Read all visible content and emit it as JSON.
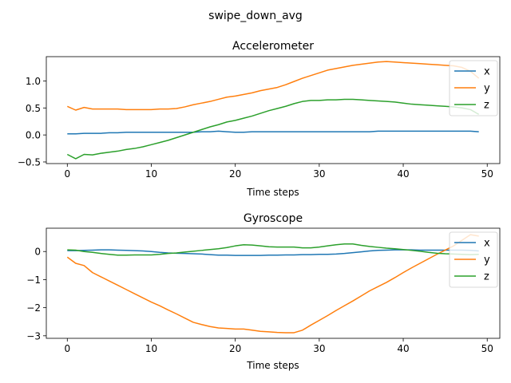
{
  "figure": {
    "suptitle": "swipe_down_avg",
    "series_colors": {
      "x": "#1f77b4",
      "y": "#ff7f0e",
      "z": "#2ca02c"
    }
  },
  "chart_data": [
    {
      "type": "line",
      "title": "Accelerometer",
      "xlabel": "Time steps",
      "ylabel": "",
      "xlim": [
        -2.5,
        51.5
      ],
      "ylim": [
        -0.53,
        1.45
      ],
      "xticks": [
        0,
        10,
        20,
        30,
        40,
        50
      ],
      "yticks": [
        -0.5,
        0.0,
        0.5,
        1.0
      ],
      "ytick_labels": [
        "−0.5",
        "0.0",
        "0.5",
        "1.0"
      ],
      "legend": "top-right",
      "x": [
        0,
        1,
        2,
        3,
        4,
        5,
        6,
        7,
        8,
        9,
        10,
        11,
        12,
        13,
        14,
        15,
        16,
        17,
        18,
        19,
        20,
        21,
        22,
        23,
        24,
        25,
        26,
        27,
        28,
        29,
        30,
        31,
        32,
        33,
        34,
        35,
        36,
        37,
        38,
        39,
        40,
        41,
        42,
        43,
        44,
        45,
        46,
        47,
        48,
        49
      ],
      "series": [
        {
          "name": "x",
          "values": [
            0.02,
            0.02,
            0.03,
            0.03,
            0.03,
            0.04,
            0.04,
            0.05,
            0.05,
            0.05,
            0.05,
            0.05,
            0.05,
            0.05,
            0.05,
            0.05,
            0.06,
            0.06,
            0.07,
            0.06,
            0.05,
            0.05,
            0.06,
            0.06,
            0.06,
            0.06,
            0.06,
            0.06,
            0.06,
            0.06,
            0.06,
            0.06,
            0.06,
            0.06,
            0.06,
            0.06,
            0.06,
            0.07,
            0.07,
            0.07,
            0.07,
            0.07,
            0.07,
            0.07,
            0.07,
            0.07,
            0.07,
            0.07,
            0.07,
            0.06
          ]
        },
        {
          "name": "y",
          "values": [
            0.53,
            0.46,
            0.51,
            0.48,
            0.48,
            0.48,
            0.48,
            0.47,
            0.47,
            0.47,
            0.47,
            0.48,
            0.48,
            0.49,
            0.52,
            0.56,
            0.59,
            0.62,
            0.66,
            0.7,
            0.72,
            0.75,
            0.78,
            0.82,
            0.85,
            0.88,
            0.93,
            0.99,
            1.05,
            1.1,
            1.15,
            1.2,
            1.23,
            1.26,
            1.29,
            1.31,
            1.33,
            1.35,
            1.36,
            1.35,
            1.34,
            1.33,
            1.32,
            1.31,
            1.3,
            1.29,
            1.28,
            1.25,
            1.18,
            1.05
          ]
        },
        {
          "name": "z",
          "values": [
            -0.36,
            -0.44,
            -0.36,
            -0.37,
            -0.34,
            -0.32,
            -0.3,
            -0.27,
            -0.25,
            -0.22,
            -0.18,
            -0.14,
            -0.1,
            -0.05,
            0.0,
            0.05,
            0.1,
            0.15,
            0.19,
            0.24,
            0.27,
            0.31,
            0.35,
            0.4,
            0.45,
            0.49,
            0.53,
            0.58,
            0.62,
            0.64,
            0.64,
            0.65,
            0.65,
            0.66,
            0.66,
            0.65,
            0.64,
            0.63,
            0.62,
            0.61,
            0.59,
            0.57,
            0.56,
            0.55,
            0.54,
            0.53,
            0.52,
            0.5,
            0.47,
            0.38
          ]
        }
      ]
    },
    {
      "type": "line",
      "title": "Gyroscope",
      "xlabel": "Time steps",
      "ylabel": "",
      "xlim": [
        -2.5,
        51.5
      ],
      "ylim": [
        -3.09,
        0.83
      ],
      "xticks": [
        0,
        10,
        20,
        30,
        40,
        50
      ],
      "yticks": [
        -3,
        -2,
        -1,
        0
      ],
      "ytick_labels": [
        "−3",
        "−2",
        "−1",
        "0"
      ],
      "legend": "top-right",
      "x": [
        0,
        1,
        2,
        3,
        4,
        5,
        6,
        7,
        8,
        9,
        10,
        11,
        12,
        13,
        14,
        15,
        16,
        17,
        18,
        19,
        20,
        21,
        22,
        23,
        24,
        25,
        26,
        27,
        28,
        29,
        30,
        31,
        32,
        33,
        34,
        35,
        36,
        37,
        38,
        39,
        40,
        41,
        42,
        43,
        44,
        45,
        46,
        47,
        48,
        49
      ],
      "series": [
        {
          "name": "x",
          "values": [
            0.03,
            0.03,
            0.04,
            0.05,
            0.06,
            0.06,
            0.05,
            0.04,
            0.03,
            0.02,
            0.0,
            -0.03,
            -0.05,
            -0.06,
            -0.07,
            -0.08,
            -0.09,
            -0.11,
            -0.13,
            -0.13,
            -0.14,
            -0.14,
            -0.14,
            -0.14,
            -0.13,
            -0.13,
            -0.12,
            -0.12,
            -0.11,
            -0.11,
            -0.1,
            -0.1,
            -0.09,
            -0.07,
            -0.04,
            -0.01,
            0.02,
            0.04,
            0.05,
            0.06,
            0.06,
            0.06,
            0.05,
            0.05,
            0.05,
            0.05,
            0.05,
            0.05,
            0.04,
            0.02
          ]
        },
        {
          "name": "y",
          "values": [
            -0.2,
            -0.42,
            -0.5,
            -0.75,
            -0.9,
            -1.05,
            -1.2,
            -1.35,
            -1.5,
            -1.65,
            -1.8,
            -1.93,
            -2.08,
            -2.22,
            -2.37,
            -2.52,
            -2.6,
            -2.67,
            -2.72,
            -2.74,
            -2.76,
            -2.76,
            -2.8,
            -2.84,
            -2.86,
            -2.88,
            -2.89,
            -2.89,
            -2.8,
            -2.62,
            -2.45,
            -2.28,
            -2.1,
            -1.93,
            -1.76,
            -1.58,
            -1.4,
            -1.25,
            -1.1,
            -0.93,
            -0.75,
            -0.58,
            -0.42,
            -0.26,
            -0.1,
            0.05,
            0.2,
            0.4,
            0.6,
            0.55
          ]
        },
        {
          "name": "z",
          "values": [
            0.06,
            0.05,
            0.0,
            -0.03,
            -0.07,
            -0.1,
            -0.13,
            -0.13,
            -0.12,
            -0.12,
            -0.12,
            -0.1,
            -0.07,
            -0.05,
            -0.02,
            0.01,
            0.04,
            0.07,
            0.1,
            0.14,
            0.2,
            0.24,
            0.23,
            0.2,
            0.17,
            0.16,
            0.16,
            0.16,
            0.13,
            0.13,
            0.16,
            0.2,
            0.24,
            0.27,
            0.27,
            0.22,
            0.18,
            0.15,
            0.12,
            0.1,
            0.07,
            0.04,
            0.01,
            -0.03,
            -0.06,
            -0.08,
            -0.09,
            -0.1,
            -0.11,
            -0.1
          ]
        }
      ]
    }
  ]
}
